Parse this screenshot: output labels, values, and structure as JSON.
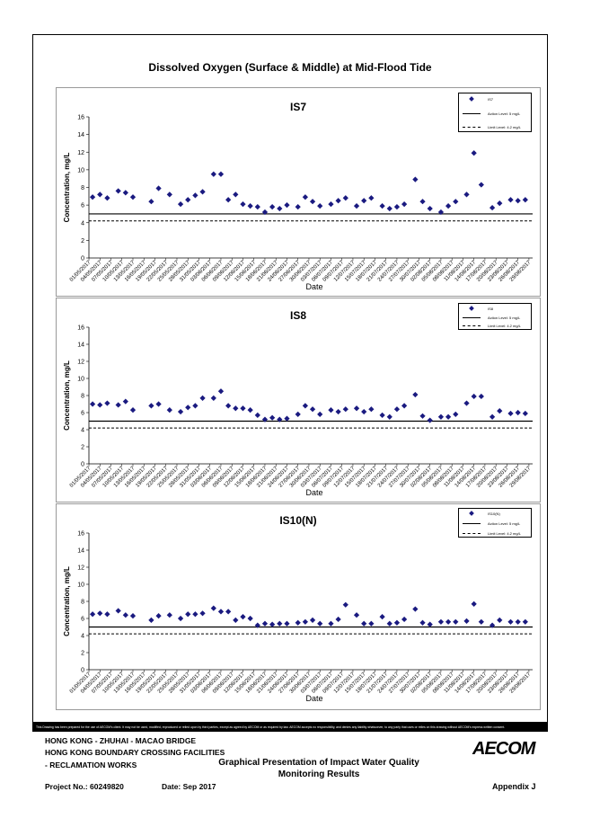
{
  "page": {
    "main_title": "Dissolved Oxygen (Surface & Middle) at Mid-Flood Tide",
    "disclaimer": "This Drawing has been prepared for the use of AECOM's client. It may not be used, modified, reproduced or relied upon by third parties, except as agreed by AECOM or as required by law. AECOM accepts no responsibility, and denies any liability whatsoever, to any party that uses or relies on this drawing without AECOM's express written consent.",
    "footer": {
      "line1": "HONG KONG - ZHUHAI - MACAO BRIDGE",
      "line2": "HONG KONG BOUNDARY CROSSING FACILITIES",
      "line3": "- RECLAMATION WORKS",
      "project": "Project No.: 60249820",
      "date": "Date: Sep 2017",
      "center1": "Graphical Presentation of Impact Water Quality",
      "center2": "Monitoring Results",
      "appendix": "Appendix J",
      "logo": "AECOM"
    }
  },
  "chart_data": [
    {
      "type": "scatter",
      "title": "IS7",
      "xlabel": "Date",
      "ylabel": "Concentration, mg/L",
      "ylim": [
        0,
        16
      ],
      "yticks": [
        0,
        2,
        4,
        6,
        8,
        10,
        12,
        14,
        16
      ],
      "legend": {
        "placement": "top-right",
        "series": "IS7",
        "action": "Action Level: 5 mg/L",
        "limit": "Limit Level: 4.2 mg/L"
      },
      "action_level": 5,
      "limit_level": 4.2,
      "tick_labels": [
        "01/05/2017",
        "04/05/2017",
        "07/05/2017",
        "10/05/2017",
        "13/05/2017",
        "16/05/2017",
        "19/05/2017",
        "22/05/2017",
        "25/05/2017",
        "28/05/2017",
        "31/05/2017",
        "03/06/2017",
        "06/06/2017",
        "09/06/2017",
        "12/06/2017",
        "15/06/2017",
        "18/06/2017",
        "21/06/2017",
        "24/06/2017",
        "27/06/2017",
        "30/06/2017",
        "03/07/2017",
        "06/07/2017",
        "09/07/2017",
        "12/07/2017",
        "15/07/2017",
        "18/07/2017",
        "21/07/2017",
        "24/07/2017",
        "27/07/2017",
        "30/07/2017",
        "02/08/2017",
        "05/08/2017",
        "08/08/2017",
        "11/08/2017",
        "14/08/2017",
        "17/08/2017",
        "20/08/2017",
        "23/08/2017",
        "26/08/2017",
        "29/08/2017"
      ],
      "series": [
        {
          "name": "IS7",
          "x": [
            1,
            3,
            5,
            8,
            10,
            12,
            17,
            19,
            22,
            25,
            27,
            29,
            31,
            34,
            36,
            38,
            40,
            42,
            44,
            46,
            48,
            50,
            52,
            54,
            57,
            59,
            61,
            63,
            66,
            68,
            70,
            73,
            75,
            77,
            80,
            82,
            84,
            86,
            89,
            91,
            93,
            96,
            98,
            100,
            103,
            105,
            107,
            110,
            112,
            115,
            117,
            119
          ],
          "y": [
            6.9,
            7.2,
            6.8,
            7.6,
            7.4,
            6.9,
            6.4,
            7.9,
            7.2,
            6.1,
            6.6,
            7.1,
            7.5,
            9.5,
            9.5,
            6.6,
            7.2,
            6.1,
            5.9,
            5.8,
            5.2,
            5.8,
            5.6,
            6.0,
            5.8,
            6.9,
            6.4,
            5.9,
            6.1,
            6.5,
            6.8,
            5.9,
            6.5,
            6.8,
            5.9,
            5.6,
            5.8,
            6.1,
            8.9,
            6.4,
            5.6,
            5.2,
            5.9,
            6.4,
            7.2,
            11.9,
            8.3,
            5.7,
            6.2,
            6.6,
            6.5,
            6.6
          ]
        }
      ]
    },
    {
      "type": "scatter",
      "title": "IS8",
      "xlabel": "Date",
      "ylabel": "Concentration, mg/L",
      "ylim": [
        0,
        16
      ],
      "yticks": [
        0,
        2,
        4,
        6,
        8,
        10,
        12,
        14,
        16
      ],
      "legend": {
        "placement": "top-right",
        "series": "IS8",
        "action": "Action Level: 5 mg/L",
        "limit": "Limit Level: 4.2 mg/L"
      },
      "action_level": 5,
      "limit_level": 4.2,
      "tick_labels": [
        "01/05/2017",
        "04/05/2017",
        "07/05/2017",
        "10/05/2017",
        "13/05/2017",
        "16/05/2017",
        "19/05/2017",
        "22/05/2017",
        "25/05/2017",
        "28/05/2017",
        "31/05/2017",
        "03/06/2017",
        "06/06/2017",
        "09/06/2017",
        "12/06/2017",
        "15/06/2017",
        "18/06/2017",
        "21/06/2017",
        "24/06/2017",
        "27/06/2017",
        "30/06/2017",
        "03/07/2017",
        "06/07/2017",
        "09/07/2017",
        "12/07/2017",
        "15/07/2017",
        "18/07/2017",
        "21/07/2017",
        "24/07/2017",
        "27/07/2017",
        "30/07/2017",
        "02/08/2017",
        "05/08/2017",
        "08/08/2017",
        "11/08/2017",
        "14/08/2017",
        "17/08/2017",
        "20/08/2017",
        "23/08/2017",
        "26/08/2017",
        "29/08/2017"
      ],
      "series": [
        {
          "name": "IS8",
          "x": [
            1,
            3,
            5,
            8,
            10,
            12,
            17,
            19,
            22,
            25,
            27,
            29,
            31,
            34,
            36,
            38,
            40,
            42,
            44,
            46,
            48,
            50,
            52,
            54,
            57,
            59,
            61,
            63,
            66,
            68,
            70,
            73,
            75,
            77,
            80,
            82,
            84,
            86,
            89,
            91,
            93,
            96,
            98,
            100,
            103,
            105,
            107,
            110,
            112,
            115,
            117,
            119
          ],
          "y": [
            7.0,
            6.9,
            7.1,
            6.9,
            7.3,
            6.3,
            6.8,
            7.0,
            6.3,
            6.1,
            6.6,
            6.8,
            7.7,
            7.7,
            8.5,
            6.8,
            6.5,
            6.5,
            6.3,
            5.7,
            5.2,
            5.4,
            5.2,
            5.3,
            5.8,
            6.8,
            6.4,
            5.8,
            6.3,
            6.1,
            6.4,
            6.5,
            6.1,
            6.4,
            5.7,
            5.5,
            6.4,
            6.8,
            8.1,
            5.6,
            5.1,
            5.5,
            5.5,
            5.8,
            7.1,
            7.9,
            7.9,
            5.5,
            6.2,
            5.9,
            6.0,
            5.9
          ]
        }
      ]
    },
    {
      "type": "scatter",
      "title": "IS10(N)",
      "xlabel": "Date",
      "ylabel": "Concentration, mg/L",
      "ylim": [
        0,
        16
      ],
      "yticks": [
        0,
        2,
        4,
        6,
        8,
        10,
        12,
        14,
        16
      ],
      "legend": {
        "placement": "top-right",
        "series": "IS10(N)",
        "action": "Action Level: 5 mg/L",
        "limit": "Limit Level: 4.2 mg/L"
      },
      "action_level": 5,
      "limit_level": 4.2,
      "tick_labels": [
        "01/05/2017",
        "04/05/2017",
        "07/05/2017",
        "10/05/2017",
        "13/05/2017",
        "16/05/2017",
        "19/05/2017",
        "22/05/2017",
        "25/05/2017",
        "28/05/2017",
        "31/05/2017",
        "03/06/2017",
        "06/06/2017",
        "09/06/2017",
        "12/06/2017",
        "15/06/2017",
        "18/06/2017",
        "21/06/2017",
        "24/06/2017",
        "27/06/2017",
        "30/06/2017",
        "03/07/2017",
        "06/07/2017",
        "09/07/2017",
        "12/07/2017",
        "15/07/2017",
        "18/07/2017",
        "21/07/2017",
        "24/07/2017",
        "27/07/2017",
        "30/07/2017",
        "02/08/2017",
        "05/08/2017",
        "08/08/2017",
        "11/08/2017",
        "14/08/2017",
        "17/08/2017",
        "20/08/2017",
        "23/08/2017",
        "26/08/2017",
        "29/08/2017"
      ],
      "series": [
        {
          "name": "IS10(N)",
          "x": [
            1,
            3,
            5,
            8,
            10,
            12,
            17,
            19,
            22,
            25,
            27,
            29,
            31,
            34,
            36,
            38,
            40,
            42,
            44,
            46,
            48,
            50,
            52,
            54,
            57,
            59,
            61,
            63,
            66,
            68,
            70,
            73,
            75,
            77,
            80,
            82,
            84,
            86,
            89,
            91,
            93,
            96,
            98,
            100,
            103,
            105,
            107,
            110,
            112,
            115,
            117,
            119
          ],
          "y": [
            6.5,
            6.6,
            6.5,
            6.9,
            6.4,
            6.3,
            5.8,
            6.3,
            6.4,
            6.0,
            6.5,
            6.5,
            6.6,
            7.2,
            6.8,
            6.8,
            5.8,
            6.2,
            6.0,
            5.2,
            5.4,
            5.3,
            5.4,
            5.4,
            5.5,
            5.6,
            5.8,
            5.4,
            5.4,
            5.9,
            7.6,
            6.4,
            5.4,
            5.4,
            6.2,
            5.4,
            5.5,
            5.9,
            7.1,
            5.5,
            5.3,
            5.6,
            5.6,
            5.6,
            5.7,
            7.7,
            5.6,
            5.2,
            5.8,
            5.6,
            5.6,
            5.6
          ]
        }
      ]
    }
  ]
}
